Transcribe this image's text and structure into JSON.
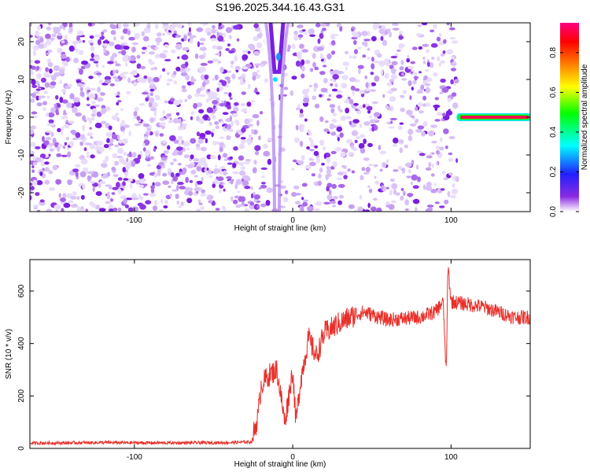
{
  "title": "S196.2025.344.16.43.G31",
  "chart_data": [
    {
      "type": "heatmap",
      "xlabel": "Height of straight line (km)",
      "ylabel": "Frequency (Hz)",
      "xlim": [
        -166,
        150
      ],
      "ylim": [
        -25,
        25
      ],
      "xticks": [
        -100,
        0,
        100
      ],
      "yticks": [
        -20,
        -10,
        0,
        10,
        20
      ],
      "colorbar": {
        "label": "Normalized spectral amplitude",
        "range": [
          0,
          0.95
        ],
        "ticks": [
          0.0,
          0.2,
          0.4,
          0.6,
          0.8
        ],
        "colors": [
          "#ffffff",
          "#8a2be2",
          "#2020ff",
          "#00ffff",
          "#00ff00",
          "#ffff00",
          "#ff7f00",
          "#ff0000",
          "#ff0080"
        ]
      },
      "features": {
        "speckle_region_x": [
          -166,
          104
        ],
        "speckle_amplitude_range": [
          0.0,
          0.25
        ],
        "v_notch_center_x": -10,
        "v_notch_peak_amplitude": 0.3,
        "tone_line": {
          "x_range": [
            105,
            150
          ],
          "frequency": 0,
          "amplitude": 0.95
        }
      }
    },
    {
      "type": "line",
      "xlabel": "Height of straight line (km)",
      "ylabel": "SNR (10 * v/v)",
      "xlim": [
        -166,
        150
      ],
      "ylim": [
        0,
        720
      ],
      "xticks": [
        -100,
        0,
        100
      ],
      "yticks": [
        0,
        200,
        400,
        600
      ],
      "line_color": "#e8302a",
      "series": [
        {
          "x": [
            -166,
            -120,
            -80,
            -40,
            -26,
            -22,
            -20,
            -15,
            -10,
            -5,
            0,
            2,
            5,
            10,
            15,
            20,
            30,
            40,
            45,
            60,
            80,
            90,
            95,
            97,
            98,
            100,
            110,
            120,
            130,
            140,
            150
          ],
          "y": [
            20,
            22,
            21,
            22,
            25,
            120,
            240,
            280,
            300,
            100,
            300,
            100,
            260,
            420,
            350,
            440,
            480,
            510,
            520,
            490,
            500,
            520,
            560,
            280,
            700,
            560,
            550,
            540,
            520,
            500,
            500
          ]
        }
      ]
    }
  ]
}
